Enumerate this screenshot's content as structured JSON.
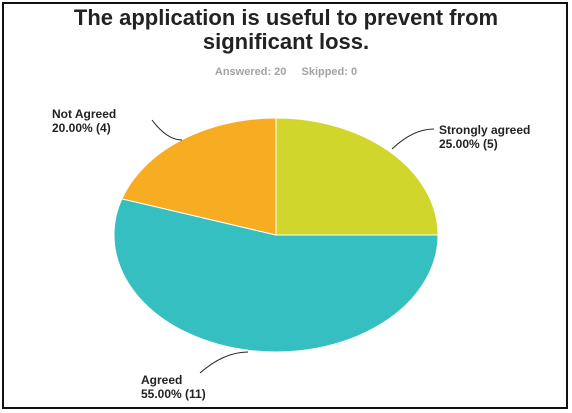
{
  "chart": {
    "title_line1": "The application is useful to prevent from",
    "title_line2": "significant loss.",
    "answered": "Answered: 20",
    "skipped": "Skipped: 0"
  },
  "chart_data": {
    "type": "pie",
    "title": "The application is useful to prevent from significant loss.",
    "categories": [
      "Strongly agreed",
      "Agreed",
      "Not Agreed"
    ],
    "values": [
      5,
      11,
      4
    ],
    "percentages": [
      25.0,
      55.0,
      20.0
    ],
    "labels": [
      "25.00% (5)",
      "55.00% (11)",
      "20.00% (4)"
    ],
    "colors": [
      "#d0d62c",
      "#35bfc1",
      "#f7ac22"
    ],
    "legend": "none",
    "grid": false
  }
}
